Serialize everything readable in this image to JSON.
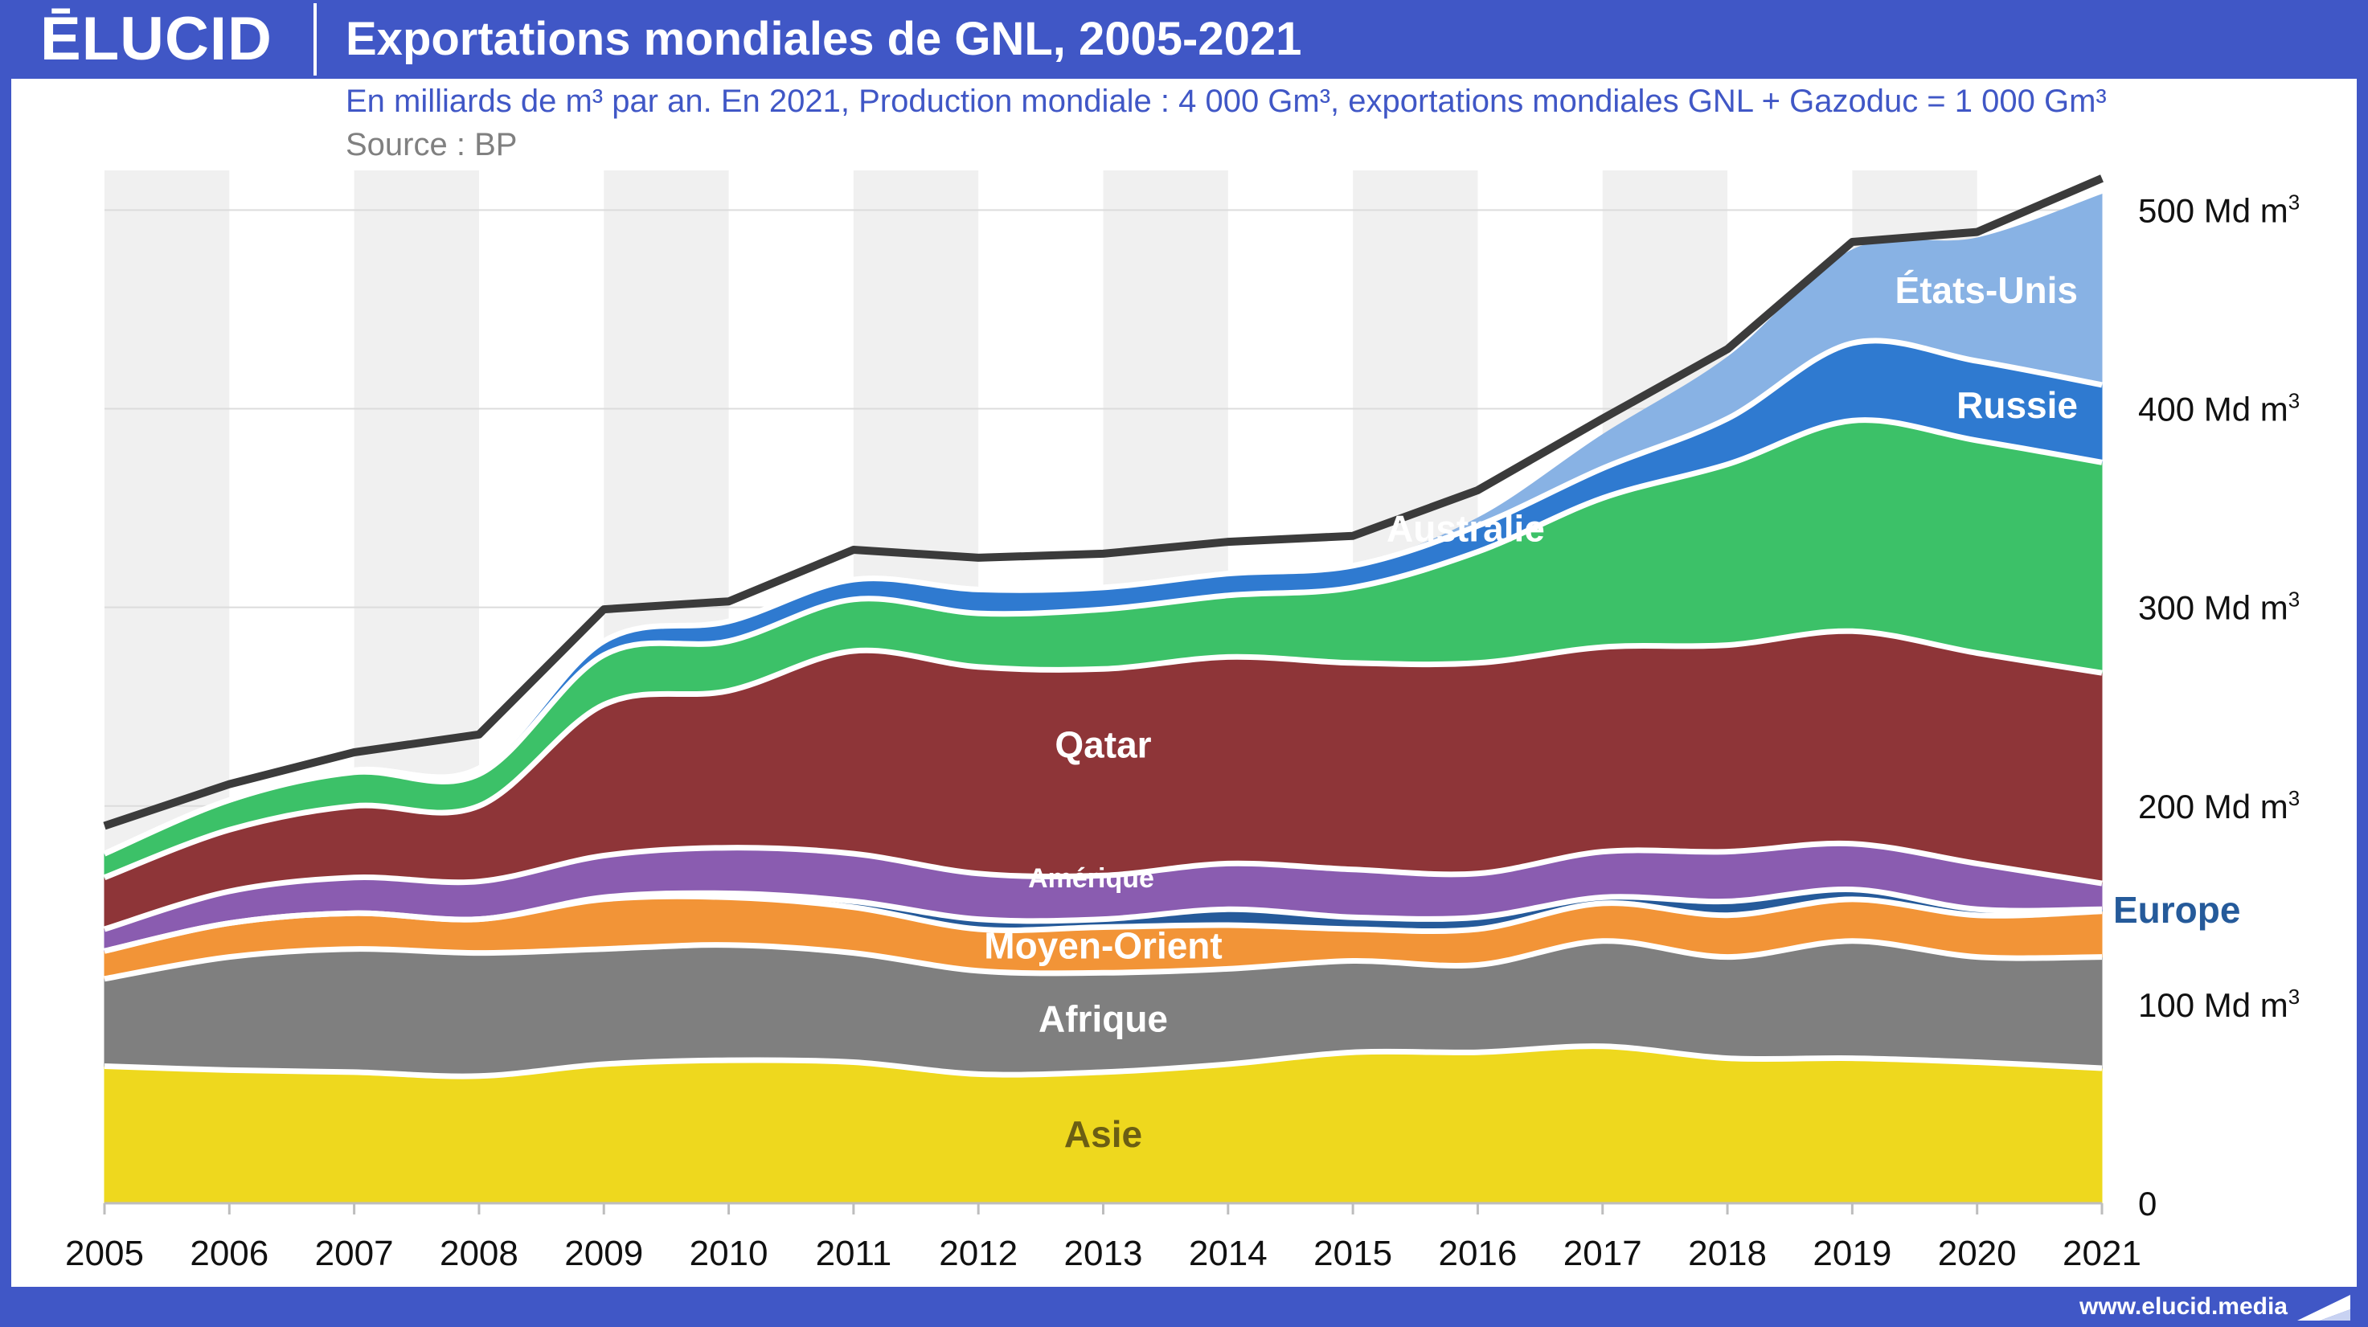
{
  "header": {
    "logo": "ĒLUCID",
    "title": "Exportations mondiales de GNL, 2005-2021",
    "subtitle": "En milliards de m³ par an. En 2021, Production mondiale : 4 000 Gm³, exportations mondiales GNL + Gazoduc = 1 000 Gm³",
    "source": "Source : BP"
  },
  "footer": {
    "website": "www.elucid.media"
  },
  "colors": {
    "header_bg": "#4057c6",
    "total_line": "#3b3b3b",
    "separator": "#ffffff",
    "band": "#f0f0f0"
  },
  "chart_data": {
    "type": "area",
    "stacked": true,
    "title": "Exportations mondiales de GNL, 2005-2021",
    "x": [
      2005,
      2006,
      2007,
      2008,
      2009,
      2010,
      2011,
      2012,
      2013,
      2014,
      2015,
      2016,
      2017,
      2018,
      2019,
      2020,
      2021
    ],
    "xticks": [
      "2005",
      "2006",
      "2007",
      "2008",
      "2009",
      "2010",
      "2011",
      "2012",
      "2013",
      "2014",
      "2015",
      "2016",
      "2017",
      "2018",
      "2019",
      "2020",
      "2021"
    ],
    "ylim": [
      0,
      520
    ],
    "yticks": [
      {
        "value": 0,
        "label": "0",
        "sup": ""
      },
      {
        "value": 100,
        "label": "100 Md m",
        "sup": "3"
      },
      {
        "value": 200,
        "label": "200 Md m",
        "sup": "3"
      },
      {
        "value": 300,
        "label": "300 Md m",
        "sup": "3"
      },
      {
        "value": 400,
        "label": "400 Md m",
        "sup": "3"
      },
      {
        "value": 500,
        "label": "500 Md m",
        "sup": "3"
      }
    ],
    "grid": true,
    "alternating_year_bands": true,
    "series": [
      {
        "name": "Asie",
        "color": "#eed81e",
        "label_color": "#6b5e14",
        "label_size": 46,
        "values": [
          69,
          67,
          66,
          64,
          70,
          72,
          71,
          65,
          66,
          70,
          76,
          76,
          79,
          73,
          73,
          71,
          68
        ]
      },
      {
        "name": "Afrique",
        "color": "#7f7f7f",
        "label_color": "#ffffff",
        "label_size": 46,
        "values": [
          44,
          57,
          62,
          62,
          58,
          58,
          55,
          52,
          50,
          48,
          46,
          44,
          53,
          51,
          59,
          53,
          56
        ]
      },
      {
        "name": "Moyen-Orient",
        "color": "#f29437",
        "label_color": "#ffffff",
        "label_size": 46,
        "values": [
          14,
          17,
          18,
          17,
          25,
          24,
          23,
          21,
          23,
          22,
          16,
          18,
          19,
          21,
          21,
          21,
          23
        ]
      },
      {
        "name": "Europe",
        "color": "#255a9a",
        "label_color": "#255a9a",
        "label_size": 46,
        "values": [
          0,
          0,
          0,
          0,
          1,
          2,
          3,
          5,
          4,
          8,
          6,
          6,
          3,
          7,
          5,
          3,
          1
        ]
      },
      {
        "name": "Amérique",
        "color": "#8a5cb0",
        "label_color": "#ffffff",
        "label_size": 34,
        "values": [
          11,
          16,
          18,
          19,
          21,
          23,
          24,
          23,
          22,
          23,
          24,
          22,
          23,
          25,
          23,
          23,
          13
        ]
      },
      {
        "name": "Qatar",
        "color": "#8e3538",
        "label_color": "#ffffff",
        "label_size": 46,
        "values": [
          26,
          31,
          36,
          38,
          76,
          79,
          102,
          104,
          104,
          104,
          104,
          106,
          103,
          104,
          107,
          106,
          106
        ]
      },
      {
        "name": "Australie",
        "color": "#3cc168",
        "label_color": "#ffffff",
        "label_size": 46,
        "values": [
          12,
          15,
          17,
          16,
          25,
          25,
          26,
          27,
          30,
          31,
          38,
          56,
          75,
          91,
          106,
          107,
          106
        ]
      },
      {
        "name": "Russie",
        "color": "#2f7ad0",
        "label_color": "#ffffff",
        "label_size": 46,
        "values": [
          0,
          0,
          1,
          3,
          7,
          10,
          10,
          12,
          11,
          11,
          11,
          13,
          15,
          23,
          39,
          40,
          39
        ]
      },
      {
        "name": "États-Unis",
        "color": "#88b2e4",
        "label_color": "#ffffff",
        "label_size": 46,
        "values": [
          1,
          1,
          1,
          1,
          1,
          1,
          0,
          0,
          0,
          0,
          0,
          4,
          17,
          31,
          47,
          62,
          96
        ]
      }
    ],
    "total": {
      "name": "Total",
      "values": [
        190,
        211,
        227,
        236,
        299,
        303,
        329,
        325,
        327,
        333,
        336,
        359,
        395,
        430,
        484,
        489,
        516
      ]
    }
  }
}
